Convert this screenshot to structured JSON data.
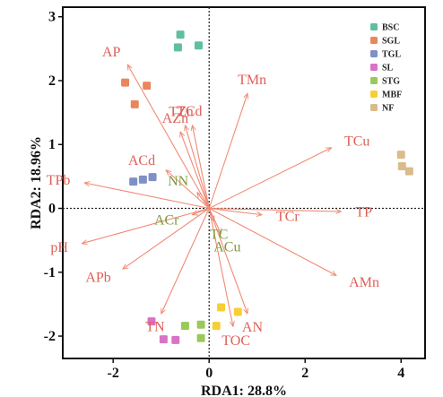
{
  "chart_data": {
    "type": "scatter",
    "xlabel": "RDA1: 28.8%",
    "ylabel": "RDA2: 18.96%",
    "xlim": [
      -3.05,
      4.5
    ],
    "ylim": [
      -2.35,
      3.15
    ],
    "xticks": [
      -2,
      0,
      2,
      4
    ],
    "yticks": [
      -2,
      -1,
      0,
      1,
      2,
      3
    ],
    "grid": false,
    "reference_lines": {
      "x": 0,
      "y": 0,
      "style": "dotted"
    },
    "legend_position": "top-right",
    "groups": [
      {
        "name": "BSC",
        "color": "#5fbf9f",
        "points": [
          [
            -0.6,
            2.72
          ],
          [
            -0.65,
            2.52
          ],
          [
            -0.22,
            2.55
          ]
        ]
      },
      {
        "name": "SGL",
        "color": "#e8875e",
        "points": [
          [
            -1.75,
            1.97
          ],
          [
            -1.3,
            1.92
          ],
          [
            -1.55,
            1.63
          ]
        ]
      },
      {
        "name": "TGL",
        "color": "#7f90c6",
        "points": [
          [
            -1.58,
            0.42
          ],
          [
            -1.38,
            0.45
          ],
          [
            -1.18,
            0.49
          ]
        ]
      },
      {
        "name": "SL",
        "color": "#d873c6",
        "points": [
          [
            -1.2,
            -1.77
          ],
          [
            -0.95,
            -2.05
          ],
          [
            -0.7,
            -2.06
          ]
        ]
      },
      {
        "name": "STG",
        "color": "#9bc85c",
        "points": [
          [
            -0.5,
            -1.84
          ],
          [
            -0.17,
            -1.82
          ],
          [
            -0.17,
            -2.03
          ]
        ]
      },
      {
        "name": "MBF",
        "color": "#f5cf34",
        "points": [
          [
            0.25,
            -1.55
          ],
          [
            0.6,
            -1.62
          ],
          [
            0.15,
            -1.84
          ]
        ]
      },
      {
        "name": "NF",
        "color": "#d9bc8a",
        "points": [
          [
            4.0,
            0.84
          ],
          [
            4.02,
            0.66
          ],
          [
            4.17,
            0.58
          ]
        ]
      }
    ],
    "vectors": [
      {
        "name": "AP",
        "x": -1.7,
        "y": 2.25,
        "group": "red"
      },
      {
        "name": "TMn",
        "x": 0.8,
        "y": 1.8,
        "group": "red"
      },
      {
        "name": "TZn",
        "x": -0.5,
        "y": 1.3,
        "group": "red"
      },
      {
        "name": "TCd",
        "x": -0.35,
        "y": 1.3,
        "group": "red"
      },
      {
        "name": "AZn",
        "x": -0.6,
        "y": 1.2,
        "group": "red"
      },
      {
        "name": "TCu",
        "x": 2.55,
        "y": 0.95,
        "group": "red"
      },
      {
        "name": "ACd",
        "x": -0.9,
        "y": 0.6,
        "group": "red"
      },
      {
        "name": "TPb",
        "x": -2.6,
        "y": 0.4,
        "group": "red"
      },
      {
        "name": "TP",
        "x": 2.75,
        "y": -0.05,
        "group": "red"
      },
      {
        "name": "TCr",
        "x": 1.1,
        "y": -0.1,
        "group": "red"
      },
      {
        "name": "pH",
        "x": -2.65,
        "y": -0.55,
        "group": "red"
      },
      {
        "name": "APb",
        "x": -1.8,
        "y": -0.95,
        "group": "red"
      },
      {
        "name": "AMn",
        "x": 2.65,
        "y": -1.05,
        "group": "red"
      },
      {
        "name": "TN",
        "x": -1.0,
        "y": -1.65,
        "group": "red"
      },
      {
        "name": "AN",
        "x": 0.8,
        "y": -1.65,
        "group": "red"
      },
      {
        "name": "TOC",
        "x": 0.5,
        "y": -1.85,
        "group": "red"
      },
      {
        "name": "NN",
        "x": -0.25,
        "y": 0.25,
        "group": "green"
      },
      {
        "name": "ACr",
        "x": -0.35,
        "y": -0.1,
        "group": "green"
      },
      {
        "name": "TC",
        "x": 0.1,
        "y": -0.2,
        "group": "green"
      },
      {
        "name": "ACu",
        "x": 0.25,
        "y": -0.4,
        "group": "green"
      }
    ]
  },
  "colors": {
    "vector_red": "#f08a74",
    "label_red": "#de5f56",
    "label_green": "#7e9b3c",
    "frame": "#111111"
  }
}
